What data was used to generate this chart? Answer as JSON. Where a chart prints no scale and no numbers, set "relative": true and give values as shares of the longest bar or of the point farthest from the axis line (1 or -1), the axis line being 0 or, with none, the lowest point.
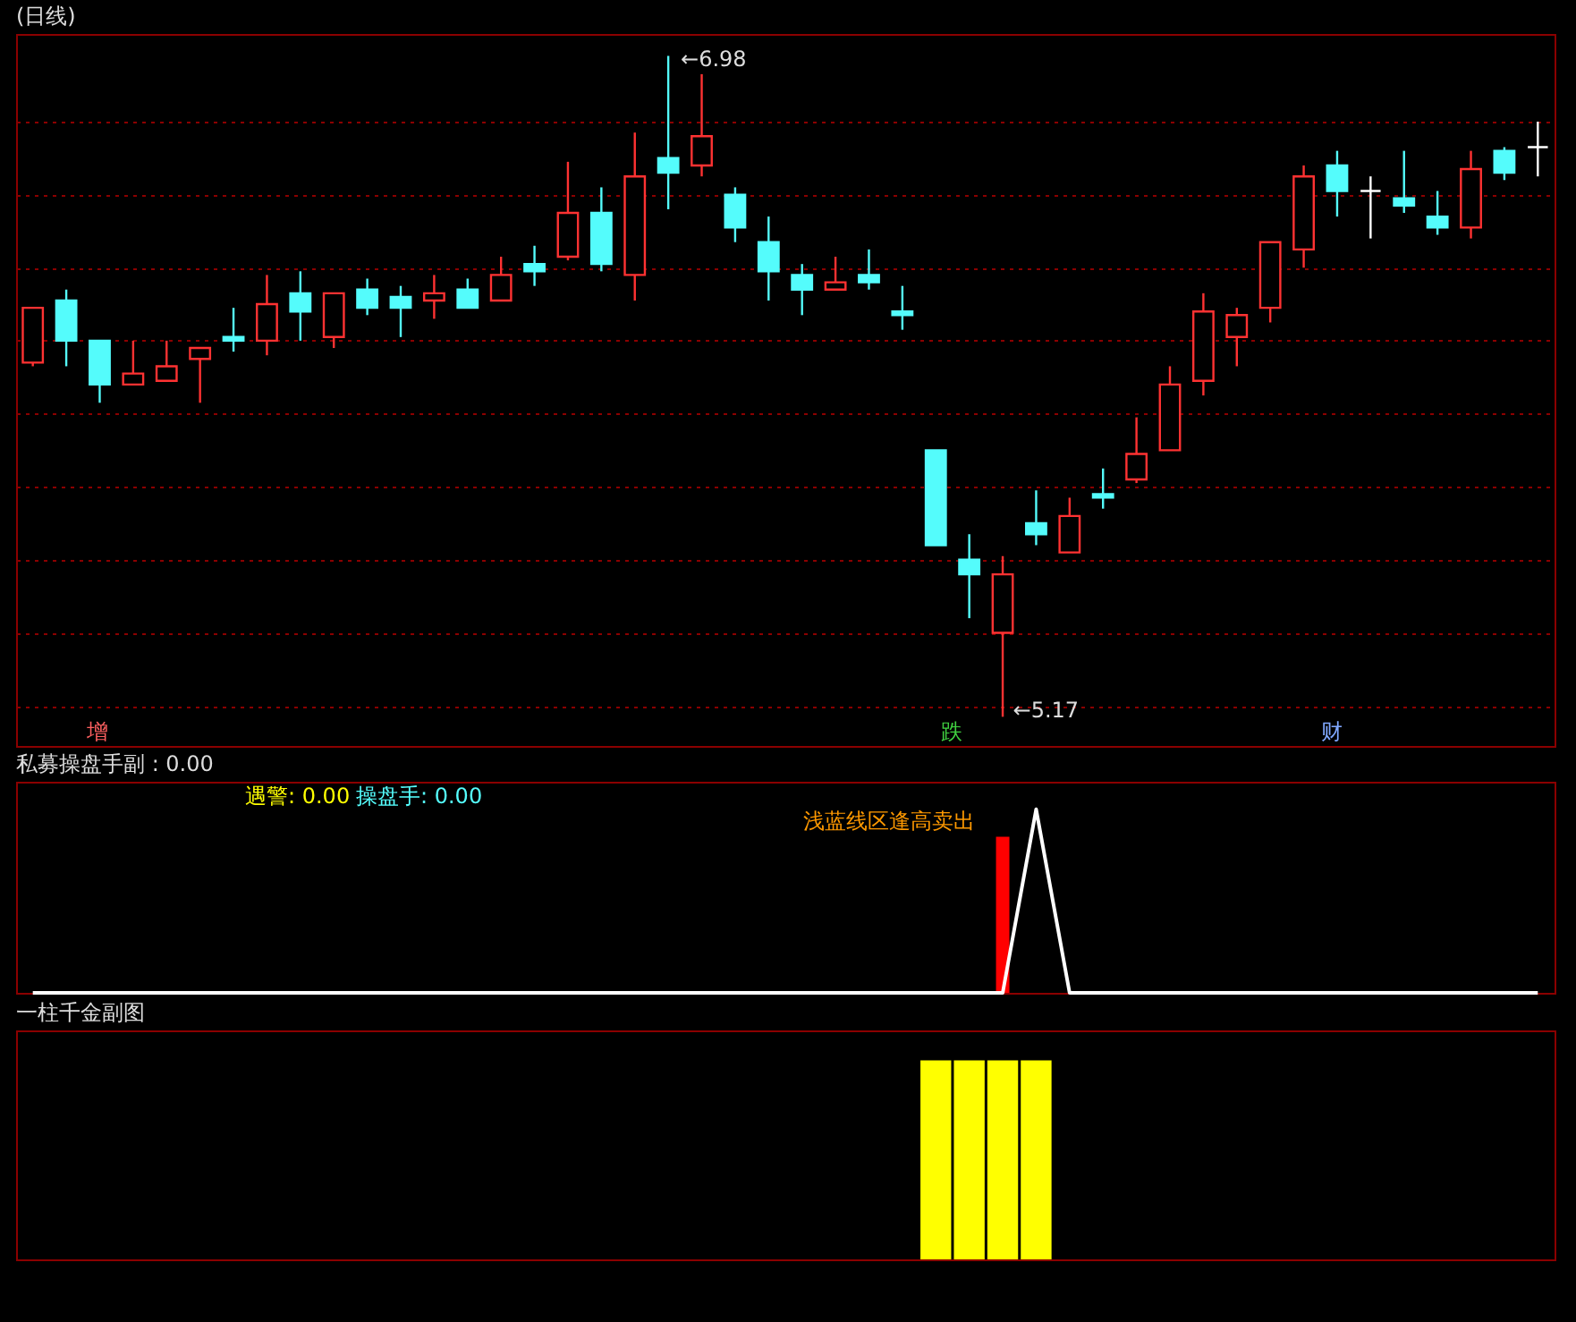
{
  "chart_data": [
    {
      "type": "candlestick",
      "title": "(日线)",
      "categories": [
        null,
        null,
        null,
        null,
        null,
        null,
        null,
        null,
        null,
        null,
        null,
        null,
        null,
        null,
        null,
        null,
        null,
        null,
        null,
        null,
        null,
        null,
        null,
        null,
        null,
        null,
        null,
        null,
        null,
        null,
        null,
        null,
        null,
        null,
        null,
        null,
        null,
        null,
        null,
        null,
        null,
        null,
        null,
        null,
        null,
        null
      ],
      "ohlc": [
        [
          6.14,
          6.29,
          6.13,
          6.29
        ],
        [
          6.31,
          6.34,
          6.13,
          6.2
        ],
        [
          6.2,
          6.2,
          6.03,
          6.08
        ],
        [
          6.08,
          6.2,
          6.08,
          6.11
        ],
        [
          6.09,
          6.2,
          6.09,
          6.13
        ],
        [
          6.15,
          6.18,
          6.03,
          6.18
        ],
        [
          6.21,
          6.29,
          6.17,
          6.2
        ],
        [
          6.2,
          6.38,
          6.16,
          6.3
        ],
        [
          6.33,
          6.39,
          6.2,
          6.28
        ],
        [
          6.21,
          6.33,
          6.18,
          6.33
        ],
        [
          6.34,
          6.37,
          6.27,
          6.29
        ],
        [
          6.32,
          6.35,
          6.21,
          6.29
        ],
        [
          6.31,
          6.38,
          6.26,
          6.33
        ],
        [
          6.34,
          6.37,
          6.29,
          6.29
        ],
        [
          6.31,
          6.43,
          6.31,
          6.38
        ],
        [
          6.41,
          6.46,
          6.35,
          6.39
        ],
        [
          6.43,
          6.69,
          6.42,
          6.55
        ],
        [
          6.55,
          6.62,
          6.39,
          6.41
        ],
        [
          6.38,
          6.77,
          6.31,
          6.65
        ],
        [
          6.7,
          6.98,
          6.56,
          6.66
        ],
        [
          6.68,
          6.93,
          6.65,
          6.76
        ],
        [
          6.6,
          6.62,
          6.47,
          6.51
        ],
        [
          6.47,
          6.54,
          6.31,
          6.39
        ],
        [
          6.38,
          6.41,
          6.27,
          6.34
        ],
        [
          6.34,
          6.43,
          6.34,
          6.36
        ],
        [
          6.38,
          6.45,
          6.34,
          6.36
        ],
        [
          6.28,
          6.35,
          6.23,
          6.27
        ],
        [
          5.9,
          5.9,
          5.64,
          5.64
        ],
        [
          5.6,
          5.67,
          5.44,
          5.56
        ],
        [
          5.4,
          5.61,
          5.17,
          5.56
        ],
        [
          5.7,
          5.79,
          5.64,
          5.67
        ],
        [
          5.62,
          5.77,
          5.62,
          5.72
        ],
        [
          5.78,
          5.85,
          5.74,
          5.77
        ],
        [
          5.82,
          5.99,
          5.81,
          5.89
        ],
        [
          5.9,
          6.13,
          5.9,
          6.08
        ],
        [
          6.09,
          6.33,
          6.05,
          6.28
        ],
        [
          6.21,
          6.29,
          6.13,
          6.27
        ],
        [
          6.29,
          6.47,
          6.25,
          6.47
        ],
        [
          6.45,
          6.68,
          6.4,
          6.65
        ],
        [
          6.68,
          6.72,
          6.54,
          6.61
        ],
        [
          6.61,
          6.65,
          6.48,
          6.61
        ],
        [
          6.59,
          6.72,
          6.55,
          6.57
        ],
        [
          6.54,
          6.61,
          6.49,
          6.51
        ],
        [
          6.51,
          6.72,
          6.48,
          6.67
        ],
        [
          6.72,
          6.73,
          6.64,
          6.66
        ],
        [
          6.73,
          6.8,
          6.65,
          6.73
        ]
      ],
      "colors": [
        "#ff3232",
        "#54fcfc",
        "#54fcfc",
        "#ff3232",
        "#ff3232",
        "#ff3232",
        "#54fcfc",
        "#ff3232",
        "#54fcfc",
        "#ff3232",
        "#54fcfc",
        "#54fcfc",
        "#ff3232",
        "#54fcfc",
        "#ff3232",
        "#54fcfc",
        "#ff3232",
        "#54fcfc",
        "#ff3232",
        "#54fcfc",
        "#ff3232",
        "#54fcfc",
        "#54fcfc",
        "#54fcfc",
        "#ff3232",
        "#54fcfc",
        "#54fcfc",
        "#54fcfc",
        "#54fcfc",
        "#ff3232",
        "#54fcfc",
        "#ff3232",
        "#54fcfc",
        "#ff3232",
        "#ff3232",
        "#ff3232",
        "#ff3232",
        "#ff3232",
        "#ff3232",
        "#54fcfc",
        "#ffffff",
        "#54fcfc",
        "#54fcfc",
        "#ff3232",
        "#54fcfc",
        "#ffffff"
      ],
      "ylim": [
        5.09,
        7.04
      ],
      "yticks": [
        {
          "value": 5.2,
          "label": null
        },
        {
          "value": 5.4,
          "label": null
        },
        {
          "value": 5.6,
          "label": null
        },
        {
          "value": 5.8,
          "label": null
        },
        {
          "value": 6.0,
          "label": null
        },
        {
          "value": 6.2,
          "label": null
        },
        {
          "value": 6.4,
          "label": null
        },
        {
          "value": 6.6,
          "label": null
        },
        {
          "value": 6.8,
          "label": null
        }
      ],
      "grid": true,
      "annotations": [
        "←6.98",
        "←5.17",
        "增",
        "跌",
        "财"
      ]
    },
    {
      "type": "bar",
      "relative": true,
      "title": "私募操盘手副 : 0.00",
      "categories": [
        null,
        null,
        null,
        null,
        null,
        null,
        null,
        null,
        null,
        null,
        null,
        null,
        null,
        null,
        null,
        null,
        null,
        null,
        null,
        null,
        null,
        null,
        null,
        null,
        null,
        null,
        null,
        null,
        null,
        null,
        null,
        null,
        null,
        null,
        null,
        null,
        null,
        null,
        null,
        null,
        null,
        null,
        null,
        null,
        null,
        null
      ],
      "series": [
        {
          "type": "bar",
          "color": "#ff0000",
          "values": [
            null,
            null,
            null,
            null,
            null,
            null,
            null,
            null,
            null,
            null,
            null,
            null,
            null,
            null,
            null,
            null,
            null,
            null,
            null,
            null,
            null,
            null,
            null,
            null,
            null,
            null,
            null,
            null,
            null,
            0.85,
            null,
            null,
            null,
            null,
            null,
            null,
            null,
            null,
            null,
            null,
            null,
            null,
            null,
            null,
            null,
            null
          ]
        },
        {
          "type": "line",
          "color": "#ffffff",
          "values": [
            0,
            0,
            0,
            0,
            0,
            0,
            0,
            0,
            0,
            0,
            0,
            0,
            0,
            0,
            0,
            0,
            0,
            0,
            0,
            0,
            0,
            0,
            0,
            0,
            0,
            0,
            0,
            0,
            0,
            0,
            1,
            0,
            0,
            0,
            0,
            0,
            0,
            0,
            0,
            0,
            0,
            0,
            0,
            0,
            0,
            0
          ]
        }
      ],
      "annotations": [
        "遇警: 0.00",
        "操盘手: 0.00",
        "浅蓝线区逢高卖出"
      ]
    },
    {
      "type": "bar",
      "relative": true,
      "title": "一柱千金副图",
      "categories": [
        null,
        null,
        null,
        null,
        null,
        null,
        null,
        null,
        null,
        null,
        null,
        null,
        null,
        null,
        null,
        null,
        null,
        null,
        null,
        null,
        null,
        null,
        null,
        null,
        null,
        null,
        null,
        null,
        null,
        null,
        null,
        null,
        null,
        null,
        null,
        null,
        null,
        null,
        null,
        null,
        null,
        null,
        null,
        null,
        null,
        null
      ],
      "color": "#ffff00",
      "values": [
        null,
        null,
        null,
        null,
        null,
        null,
        null,
        null,
        null,
        null,
        null,
        null,
        null,
        null,
        null,
        null,
        null,
        null,
        null,
        null,
        null,
        null,
        null,
        null,
        null,
        null,
        null,
        1,
        1,
        1,
        1,
        null,
        null,
        null,
        null,
        null,
        null,
        null,
        null,
        null,
        null,
        null,
        null,
        null,
        null,
        null
      ]
    }
  ]
}
